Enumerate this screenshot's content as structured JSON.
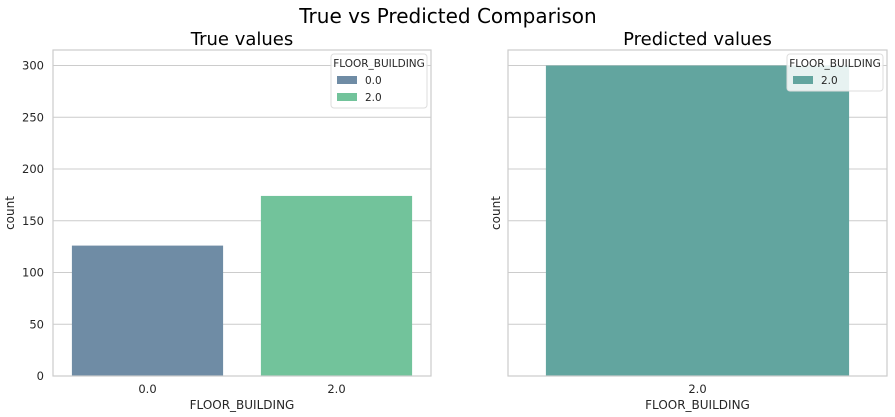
{
  "suptitle": "True vs Predicted Comparison",
  "chart_data": [
    {
      "type": "bar",
      "title": "True values",
      "xlabel": "FLOOR_BUILDING",
      "ylabel": "count",
      "categories": [
        "0.0",
        "2.0"
      ],
      "values": [
        126,
        174
      ],
      "colors": [
        "#6f8ca5",
        "#72c39b"
      ],
      "ylim": [
        0,
        315
      ],
      "yticks": [
        0,
        50,
        100,
        150,
        200,
        250,
        300
      ],
      "grid": true,
      "legend": {
        "title": "FLOOR_BUILDING",
        "placement": "top-right",
        "entries": [
          "0.0",
          "2.0"
        ]
      }
    },
    {
      "type": "bar",
      "title": "Predicted values",
      "xlabel": "FLOOR_BUILDING",
      "ylabel": "count",
      "categories": [
        "2.0"
      ],
      "values": [
        300
      ],
      "colors": [
        "#62a59f"
      ],
      "ylim": [
        0,
        315
      ],
      "yticks": [
        0,
        50,
        100,
        150,
        200,
        250,
        300
      ],
      "grid": true,
      "legend": {
        "title": "FLOOR_BUILDING",
        "placement": "top-right",
        "entries": [
          "2.0"
        ]
      }
    }
  ]
}
